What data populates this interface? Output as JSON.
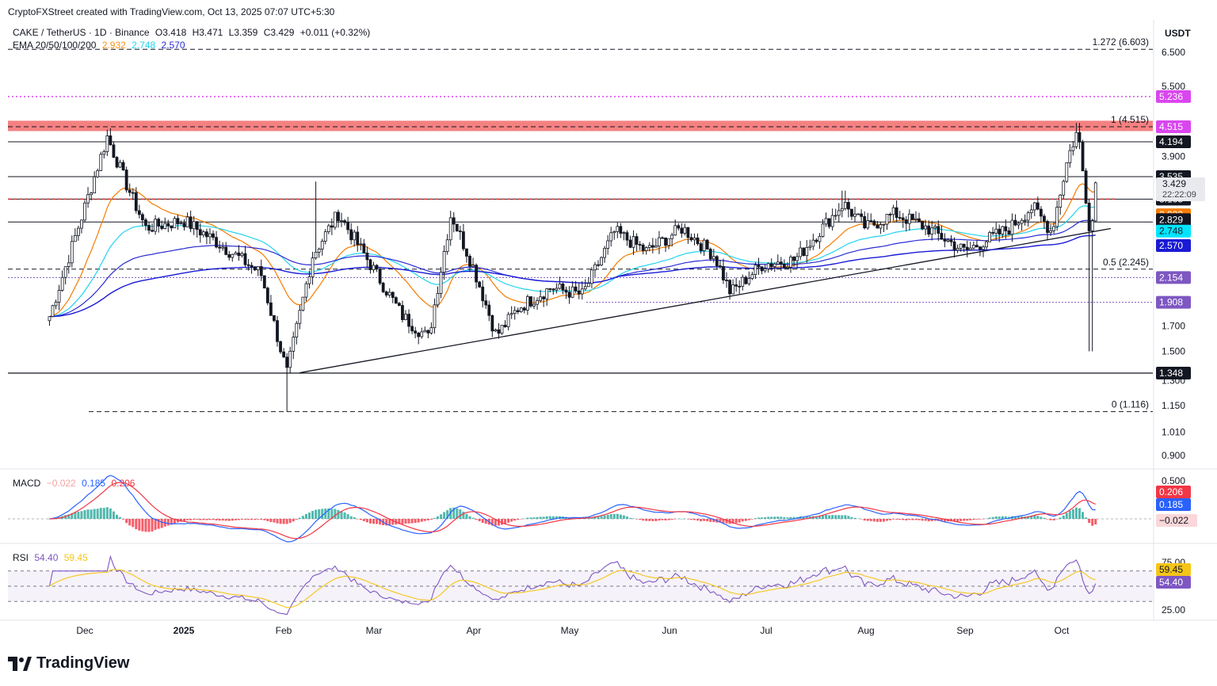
{
  "header": {
    "text": "CryptoFXStreet created with TradingView.com, Oct 13, 2025 07:07 UTC+5:30"
  },
  "legend": {
    "symbol_line": "CAKE / TetherUS · 1D · Binance",
    "open": "O3.418",
    "high": "H3.471",
    "low": "L3.359",
    "close": "C3.429",
    "change": "+0.011 (+0.32%)",
    "ema_label": "EMA 20/50/100/200",
    "ema_values": [
      "2.932",
      "2.748",
      "2.570"
    ],
    "ema_colors": [
      "#f7931a",
      "#22d3ee",
      "#2b2bd4"
    ]
  },
  "currency": "USDT",
  "macd_legend": {
    "label": "MACD",
    "hist": "−0.022",
    "macd": "0.185",
    "signal": "0.206"
  },
  "rsi_legend": {
    "label": "RSI",
    "rsi": "54.40",
    "ma": "59.45"
  },
  "logo_text": "TradingView",
  "chart_data": [
    {
      "type": "candlestick",
      "title": "CAKE / TetherUS · 1D · Binance",
      "x_ticks": [
        "Dec",
        "2025",
        "Feb",
        "Mar",
        "Apr",
        "May",
        "Jun",
        "Jul",
        "Aug",
        "Sep",
        "Oct"
      ],
      "y_ticks": [
        "6.500",
        "5.500",
        "3.900",
        "1.700",
        "1.500",
        "1.300",
        "1.150",
        "1.010",
        "0.900"
      ],
      "price_scale": "log",
      "last_price": {
        "value": "3.429",
        "countdown": "22:22:09"
      },
      "horizontal_levels": [
        {
          "value": "4.515",
          "color": "#d946ef",
          "note": "1 (4.515)"
        },
        {
          "value": "4.194",
          "color": "#131722"
        },
        {
          "value": "3.535",
          "color": "#131722"
        },
        {
          "value": "3.165",
          "color": "#131722"
        },
        {
          "value": "2.829",
          "color": "#131722"
        },
        {
          "value": "1.348",
          "color": "#131722"
        },
        {
          "value": "5.236",
          "color": "#d946ef"
        },
        {
          "value": "2.154",
          "color": "#7e57c2"
        },
        {
          "value": "1.908",
          "color": "#7e57c2"
        },
        {
          "value": "2.932",
          "color": "#f57c00"
        },
        {
          "value": "2.748",
          "color": "#00bcd4"
        },
        {
          "value": "2.570",
          "color": "#1a1ad6"
        }
      ],
      "fib_levels": [
        {
          "label": "1.272 (6.603)",
          "value": 6.603
        },
        {
          "label": "1 (4.515)",
          "value": 4.515
        },
        {
          "label": "0.5 (2.245)",
          "value": 2.245
        },
        {
          "label": "0 (1.116)",
          "value": 1.116
        }
      ],
      "ema": {
        "ema20": 2.932,
        "ema50": 2.748,
        "ema200": 2.57
      },
      "close_path": [
        [
          "Nov 20",
          1.78
        ],
        [
          "Nov 30",
          2.9
        ],
        [
          "Dec 8",
          4.3
        ],
        [
          "Dec 14",
          3.4
        ],
        [
          "Dec 20",
          2.75
        ],
        [
          "Jan 1",
          2.85
        ],
        [
          "Jan 10",
          2.6
        ],
        [
          "Jan 25",
          2.2
        ],
        [
          "Feb 2",
          1.35
        ],
        [
          "Feb 10",
          2.4
        ],
        [
          "Feb 18",
          2.95
        ],
        [
          "Feb 28",
          2.3
        ],
        [
          "Mar 10",
          1.78
        ],
        [
          "Mar 18",
          1.6
        ],
        [
          "Mar 25",
          2.95
        ],
        [
          "Apr 1",
          2.25
        ],
        [
          "Apr 8",
          1.62
        ],
        [
          "Apr 15",
          1.86
        ],
        [
          "Apr 25",
          2.05
        ],
        [
          "May 5",
          1.98
        ],
        [
          "May 15",
          2.7
        ],
        [
          "May 25",
          2.45
        ],
        [
          "Jun 5",
          2.75
        ],
        [
          "Jun 15",
          2.4
        ],
        [
          "Jun 20",
          2.0
        ],
        [
          "Jun 30",
          2.3
        ],
        [
          "Jul 10",
          2.35
        ],
        [
          "Jul 25",
          3.1
        ],
        [
          "Aug 1",
          2.75
        ],
        [
          "Aug 10",
          2.95
        ],
        [
          "Aug 20",
          2.75
        ],
        [
          "Sep 1",
          2.45
        ],
        [
          "Sep 15",
          2.75
        ],
        [
          "Sep 22",
          3.05
        ],
        [
          "Sep 28",
          2.7
        ],
        [
          "Oct 3",
          3.9
        ],
        [
          "Oct 6",
          4.45
        ],
        [
          "Oct 10",
          2.65
        ],
        [
          "Oct 12",
          3.429
        ]
      ]
    },
    {
      "type": "bar",
      "title": "MACD",
      "y_ticks": [
        "0.500"
      ],
      "series": [
        {
          "name": "MACD",
          "value": 0.185
        },
        {
          "name": "Signal",
          "value": 0.206
        },
        {
          "name": "Histogram",
          "value": -0.022
        }
      ]
    },
    {
      "type": "line",
      "title": "RSI",
      "y_ticks": [
        "75.00",
        "25.00"
      ],
      "series": [
        {
          "name": "RSI",
          "value": 54.4
        },
        {
          "name": "RSI MA",
          "value": 59.45
        }
      ]
    }
  ]
}
